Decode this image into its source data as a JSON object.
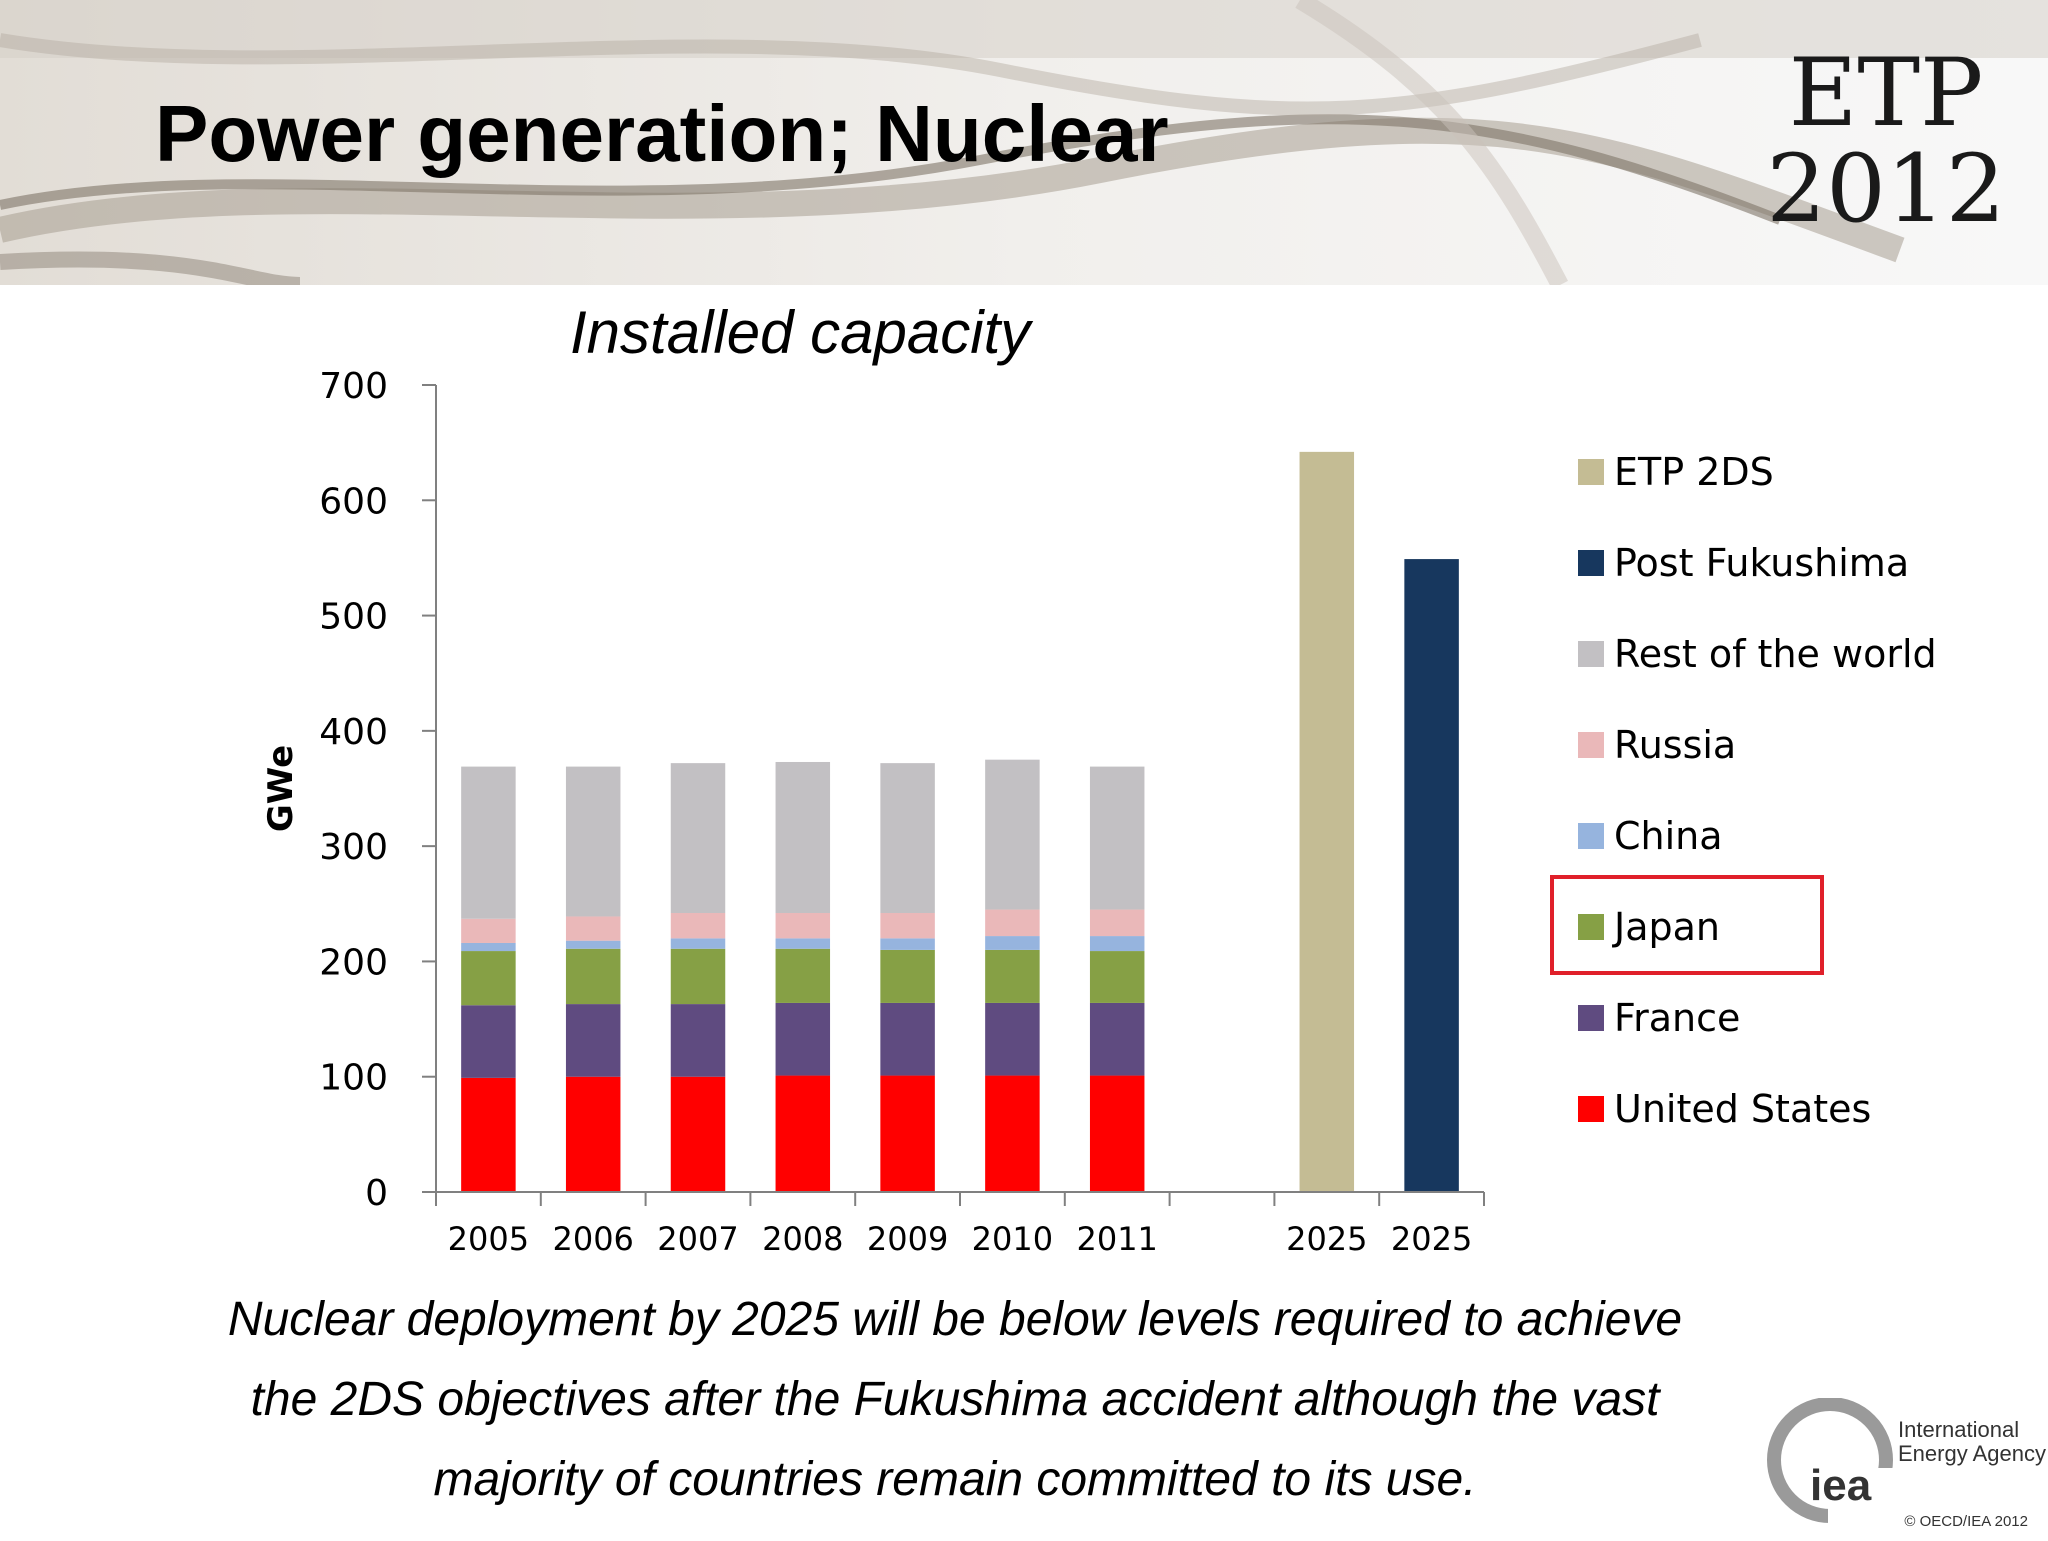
{
  "slide": {
    "title": "Power generation; Nuclear",
    "logo_line1": "ETP",
    "logo_line2": "2012"
  },
  "caption": {
    "line1": "Nuclear deployment by 2025 will be below levels required to achieve",
    "line2": "the 2DS objectives after the Fukushima accident although the vast",
    "line3": "majority of countries remain committed to its use."
  },
  "footer": {
    "org_line1": "International",
    "org_line2": "Energy Agency",
    "org_short": "iea",
    "copyright": "© OECD/IEA 2012"
  },
  "chart_data": {
    "type": "bar",
    "title": "Installed capacity",
    "ylabel": "GWe",
    "xlabel": "",
    "ylim": [
      0,
      700
    ],
    "yticks": [
      0,
      100,
      200,
      300,
      400,
      500,
      600,
      700
    ],
    "grid": false,
    "legend_position": "right",
    "highlighted_legend_entry": "Japan",
    "categories": [
      "2005",
      "2006",
      "2007",
      "2008",
      "2009",
      "2010",
      "2011",
      "",
      "2025",
      "2025"
    ],
    "series": [
      {
        "name": "United States",
        "color": "#ff0000",
        "values": [
          99,
          100,
          100,
          101,
          101,
          101,
          101,
          null,
          null,
          null
        ]
      },
      {
        "name": "France",
        "color": "#5f4b80",
        "values": [
          63,
          63,
          63,
          63,
          63,
          63,
          63,
          null,
          null,
          null
        ]
      },
      {
        "name": "Japan",
        "color": "#86a045",
        "values": [
          47,
          48,
          48,
          47,
          46,
          46,
          45,
          null,
          null,
          null
        ]
      },
      {
        "name": "China",
        "color": "#96b4de",
        "values": [
          7,
          7,
          9,
          9,
          10,
          12,
          13,
          null,
          null,
          null
        ]
      },
      {
        "name": "Russia",
        "color": "#eab8b9",
        "values": [
          21,
          21,
          22,
          22,
          22,
          23,
          23,
          null,
          null,
          null
        ]
      },
      {
        "name": "Rest of the world",
        "color": "#c2c0c3",
        "values": [
          132,
          130,
          130,
          131,
          130,
          130,
          124,
          null,
          null,
          null
        ]
      },
      {
        "name": "Post Fukushima",
        "color": "#17375e",
        "values": [
          null,
          null,
          null,
          null,
          null,
          null,
          null,
          null,
          null,
          549
        ]
      },
      {
        "name": "ETP 2DS",
        "color": "#c4bc94",
        "values": [
          null,
          null,
          null,
          null,
          null,
          null,
          null,
          null,
          642,
          null
        ]
      }
    ],
    "legend_order": [
      "ETP 2DS",
      "Post Fukushima",
      "Rest of the world",
      "Russia",
      "China",
      "Japan",
      "France",
      "United States"
    ]
  }
}
